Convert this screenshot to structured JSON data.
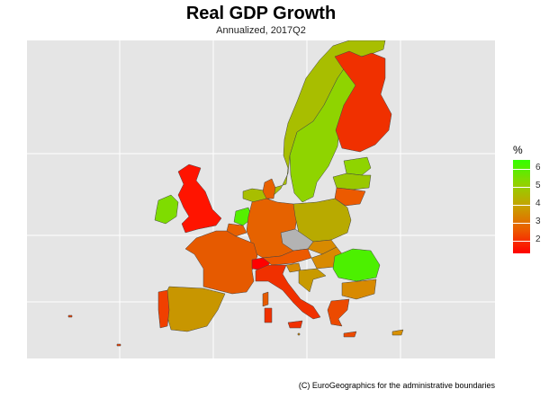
{
  "title": "Real GDP Growth",
  "subtitle": "Annualized, 2017Q2",
  "caption": "(C) EuroGeographics for the administrative boundaries",
  "legend": {
    "title": "%",
    "labels": [
      "6",
      "5",
      "4",
      "3",
      "2"
    ],
    "scale_colors": [
      "#33ff00",
      "#8fd400",
      "#c8a000",
      "#ec5a00",
      "#ff0000"
    ]
  },
  "chart_data": {
    "type": "choropleth",
    "value_range": [
      1.4,
      6.5
    ],
    "no_data_color": "#b3b3b3",
    "background": "#e5e5e5",
    "grid": true
  },
  "colors": {
    "norway": "#a8be00",
    "sweden": "#8fd400",
    "finland": "#f03000",
    "estonia": "#8fd400",
    "latvia": "#9ac800",
    "lithuania": "#ec5a00",
    "denmark": "#e86000",
    "uk": "#ff1400",
    "ireland": "#7fdc00",
    "netherlands": "#55f000",
    "belgium": "#e86000",
    "germany": "#e66200",
    "poland": "#b8aa00",
    "czech": "#b3b3b3",
    "slovakia": "#d88a00",
    "austria": "#ec5a00",
    "hungary": "#d88a00",
    "slovenia": "#d88a00",
    "croatia": "#c89a00",
    "romania": "#4cf000",
    "bulgaria": "#d88a00",
    "greece": "#ec4a00",
    "france": "#e65a00",
    "switzerland": "#ff0000",
    "italy": "#f03000",
    "spain": "#c89600",
    "portugal": "#f04000",
    "cyprus": "#d89000",
    "malta": "#d89000"
  }
}
